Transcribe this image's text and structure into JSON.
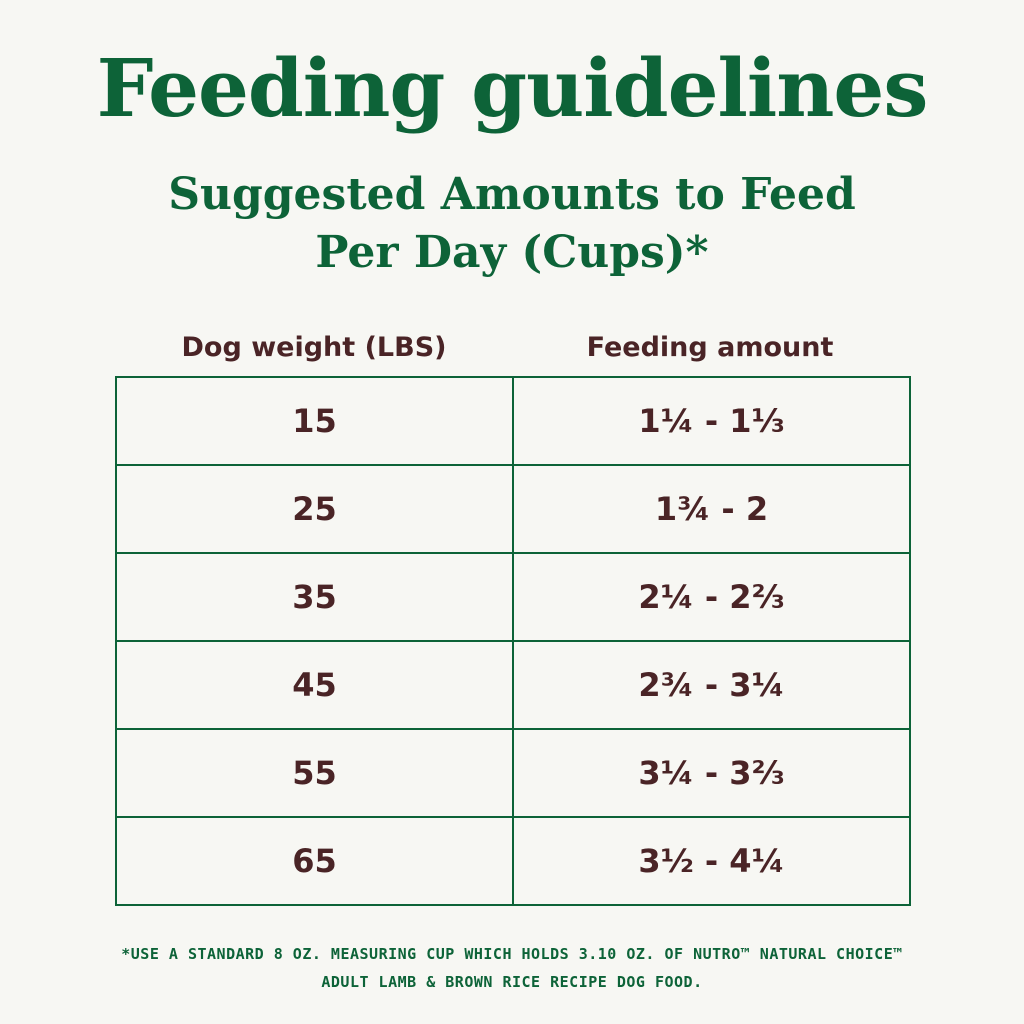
{
  "title": "Feeding guidelines",
  "subtitle": {
    "line1": "Suggested Amounts to Feed",
    "line2": "Per Day (Cups)*"
  },
  "table": {
    "headers": {
      "weight": "Dog weight (LBS)",
      "amount": "Feeding amount"
    },
    "rows": [
      {
        "weight": "15",
        "amount": "1¼ - 1⅓"
      },
      {
        "weight": "25",
        "amount": "1¾ - 2"
      },
      {
        "weight": "35",
        "amount": "2¼  - 2⅔"
      },
      {
        "weight": "45",
        "amount": "2¾ - 3¼"
      },
      {
        "weight": "55",
        "amount": "3¼ - 3⅔"
      },
      {
        "weight": "65",
        "amount": "3½ - 4¼"
      }
    ]
  },
  "footnote": {
    "line1": "*USE A STANDARD 8 OZ. MEASURING CUP WHICH HOLDS 3.10 OZ. OF NUTRO™ NATURAL CHOICE™",
    "line2": "ADULT LAMB & BROWN RICE RECIPE DOG FOOD."
  },
  "colors": {
    "brand_green": "#0d6338",
    "text_brown": "#4a2426",
    "background": "#f7f7f3"
  }
}
